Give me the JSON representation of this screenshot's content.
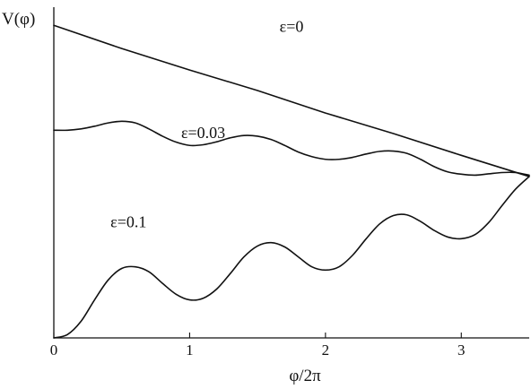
{
  "chart_data": {
    "type": "line",
    "xlabel": "φ/2π",
    "ylabel": "V(φ)",
    "xlim": [
      0,
      3.5
    ],
    "ylim": [
      0,
      1
    ],
    "x_ticks": [
      {
        "value": 0,
        "label": "0"
      },
      {
        "value": 1,
        "label": "1"
      },
      {
        "value": 2,
        "label": "2"
      },
      {
        "value": 3,
        "label": "3"
      }
    ],
    "series": [
      {
        "name": "ε=0",
        "label_at": [
          1.75,
          0.925
        ],
        "x": [
          0,
          0.5,
          1,
          1.5,
          2,
          2.5,
          3,
          3.5
        ],
        "y": [
          0.945,
          0.875,
          0.81,
          0.748,
          0.68,
          0.618,
          0.552,
          0.488
        ]
      },
      {
        "name": "ε=0.03",
        "label_at": [
          1.1,
          0.605
        ],
        "x": [
          0,
          0.1,
          0.2,
          0.3,
          0.4,
          0.5,
          0.6,
          0.7,
          0.8,
          0.9,
          1.0,
          1.1,
          1.2,
          1.3,
          1.4,
          1.5,
          1.6,
          1.7,
          1.8,
          1.9,
          2.0,
          2.1,
          2.2,
          2.3,
          2.4,
          2.5,
          2.6,
          2.7,
          2.8,
          2.9,
          3.0,
          3.1,
          3.2,
          3.3,
          3.4,
          3.5
        ],
        "y": [
          0.628,
          0.628,
          0.632,
          0.64,
          0.65,
          0.655,
          0.65,
          0.632,
          0.61,
          0.592,
          0.582,
          0.584,
          0.593,
          0.605,
          0.612,
          0.61,
          0.6,
          0.582,
          0.562,
          0.548,
          0.54,
          0.54,
          0.546,
          0.556,
          0.564,
          0.565,
          0.558,
          0.54,
          0.518,
          0.502,
          0.495,
          0.492,
          0.496,
          0.5,
          0.5,
          0.492
        ]
      },
      {
        "name": "ε=0.1",
        "label_at": [
          0.55,
          0.335
        ],
        "x": [
          0,
          0.1,
          0.2,
          0.3,
          0.4,
          0.5,
          0.6,
          0.7,
          0.8,
          0.9,
          1.0,
          1.1,
          1.2,
          1.3,
          1.4,
          1.5,
          1.6,
          1.7,
          1.8,
          1.9,
          2.0,
          2.1,
          2.2,
          2.3,
          2.4,
          2.5,
          2.6,
          2.7,
          2.8,
          2.9,
          3.0,
          3.1,
          3.2,
          3.3,
          3.4,
          3.5
        ],
        "y": [
          0.0,
          0.01,
          0.05,
          0.115,
          0.175,
          0.21,
          0.215,
          0.2,
          0.165,
          0.132,
          0.115,
          0.12,
          0.148,
          0.195,
          0.245,
          0.278,
          0.288,
          0.275,
          0.245,
          0.215,
          0.205,
          0.215,
          0.25,
          0.3,
          0.345,
          0.37,
          0.372,
          0.352,
          0.325,
          0.305,
          0.3,
          0.312,
          0.348,
          0.4,
          0.45,
          0.488
        ]
      }
    ]
  }
}
